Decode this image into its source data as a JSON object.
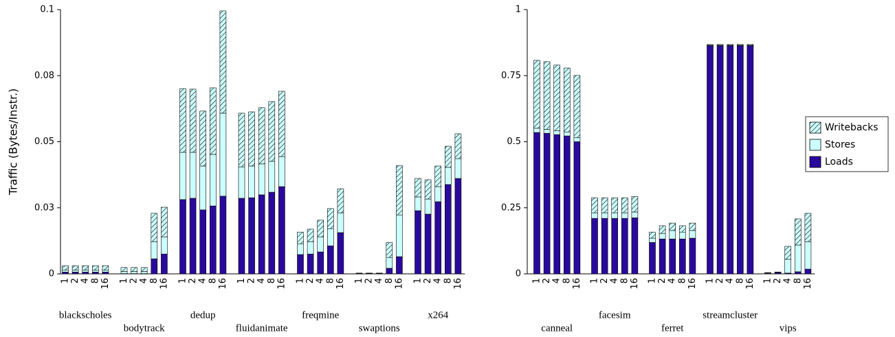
{
  "chart_data": [
    {
      "type": "stacked-bar",
      "y_label": "Traffic (Bytes/Instr.)",
      "groups": [
        "blackscholes",
        "bodytrack",
        "dedup",
        "fluidanimate",
        "freqmine",
        "swaptions",
        "x264"
      ],
      "categories": [
        "1",
        "2",
        "4",
        "8",
        "16",
        "1",
        "2",
        "4",
        "8",
        "16",
        "1",
        "2",
        "4",
        "8",
        "16",
        "1",
        "2",
        "4",
        "8",
        "16",
        "1",
        "2",
        "4",
        "8",
        "16",
        "1",
        "2",
        "4",
        "8",
        "16",
        "1",
        "2",
        "4",
        "8",
        "16"
      ],
      "ylim": [
        0,
        0.1
      ],
      "yticks": [
        0,
        {
          "value": 0.025,
          "label": "0.03"
        },
        0.05,
        {
          "value": 0.075,
          "label": "0.08"
        },
        0.1
      ],
      "series": [
        {
          "color": "#2a0a9c",
          "values": [
            0.0007,
            0.0007,
            0.0007,
            0.0007,
            0.0007,
            0.0001,
            0.0001,
            0.0001,
            0.0057,
            0.0075,
            0.0281,
            0.0286,
            0.0242,
            0.0257,
            0.0294,
            0.0286,
            0.0288,
            0.0299,
            0.0309,
            0.033,
            0.0073,
            0.0075,
            0.0083,
            0.0106,
            0.0156,
            0.0001,
            0.0001,
            0.0001,
            0.0021,
            0.0065,
            0.0239,
            0.0226,
            0.0273,
            0.0338,
            0.0361
          ]
        },
        {
          "color": "#ccffff",
          "values": [
            0.0007,
            0.0007,
            0.0007,
            0.0007,
            0.0007,
            0.0008,
            0.0008,
            0.0008,
            0.0065,
            0.0065,
            0.0179,
            0.0174,
            0.0166,
            0.0195,
            0.0314,
            0.0119,
            0.012,
            0.0117,
            0.0117,
            0.0114,
            0.0041,
            0.0047,
            0.0057,
            0.0065,
            0.0075,
            0.0001,
            0.0001,
            0.0001,
            0.0041,
            0.0158,
            0.0052,
            0.0057,
            0.0057,
            0.0065,
            0.0075
          ]
        },
        {
          "color": "#ccffff",
          "hatch": true,
          "values": [
            0.0017,
            0.0017,
            0.0017,
            0.0017,
            0.0017,
            0.0015,
            0.0015,
            0.0015,
            0.0107,
            0.0112,
            0.0241,
            0.0239,
            0.0208,
            0.0252,
            0.0387,
            0.0203,
            0.0205,
            0.0213,
            0.0226,
            0.0247,
            0.0044,
            0.0047,
            0.0063,
            0.0076,
            0.0091,
            0.0001,
            0.0001,
            0.0001,
            0.0057,
            0.0187,
            0.007,
            0.0073,
            0.0078,
            0.008,
            0.0094
          ]
        }
      ]
    },
    {
      "type": "stacked-bar",
      "groups": [
        "canneal",
        "facesim",
        "ferret",
        "streamcluster",
        "vips"
      ],
      "categories": [
        "1",
        "2",
        "4",
        "8",
        "16",
        "1",
        "2",
        "4",
        "8",
        "16",
        "1",
        "2",
        "4",
        "8",
        "16",
        "1",
        "2",
        "4",
        "8",
        "16",
        "1",
        "2",
        "4",
        "8",
        "16"
      ],
      "ylim": [
        0,
        1
      ],
      "yticks": [
        0,
        0.25,
        0.5,
        0.75,
        1
      ],
      "series": [
        {
          "name": "Loads",
          "color": "#2a0a9c",
          "values": [
            0.535,
            0.532,
            0.527,
            0.522,
            0.5,
            0.21,
            0.21,
            0.21,
            0.21,
            0.212,
            0.119,
            0.132,
            0.132,
            0.132,
            0.135,
            0.863,
            0.863,
            0.863,
            0.863,
            0.863,
            0.001,
            0.005,
            0.003,
            0.008,
            0.018
          ]
        },
        {
          "name": "Stores",
          "color": "#ccffff",
          "values": [
            0.016,
            0.015,
            0.015,
            0.015,
            0.015,
            0.021,
            0.021,
            0.021,
            0.021,
            0.022,
            0.016,
            0.021,
            0.032,
            0.026,
            0.029,
            0.002,
            0.002,
            0.002,
            0.002,
            0.002,
            0.002,
            0.001,
            0.052,
            0.101,
            0.104
          ]
        },
        {
          "name": "Writebacks",
          "color": "#ccffff",
          "hatch": true,
          "values": [
            0.257,
            0.256,
            0.248,
            0.242,
            0.236,
            0.057,
            0.057,
            0.057,
            0.057,
            0.059,
            0.023,
            0.029,
            0.028,
            0.024,
            0.028,
            0.003,
            0.003,
            0.003,
            0.003,
            0.003,
            0.002,
            0.001,
            0.049,
            0.099,
            0.107
          ]
        }
      ]
    }
  ]
}
